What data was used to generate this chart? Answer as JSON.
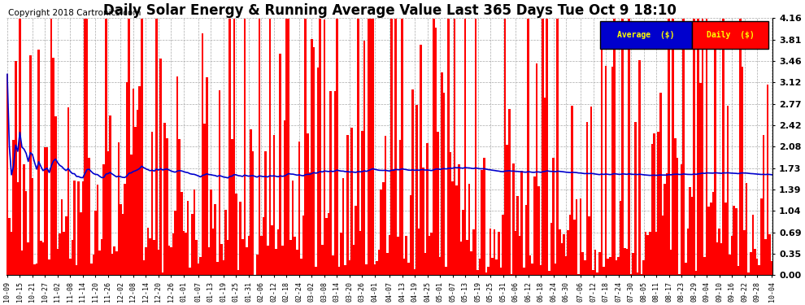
{
  "title": "Daily Solar Energy & Running Average Value Last 365 Days Tue Oct 9 18:10",
  "copyright": "Copyright 2018 Cartronics.com",
  "y_max": 4.16,
  "y_min": 0.0,
  "y_ticks": [
    0.0,
    0.35,
    0.69,
    1.04,
    1.39,
    1.73,
    2.08,
    2.42,
    2.77,
    3.12,
    3.46,
    3.81,
    4.16
  ],
  "bar_color": "#FF0000",
  "avg_color": "#0000CD",
  "legend_avg_bg": "#0000CD",
  "legend_daily_bg": "#FF0000",
  "legend_text_color": "#FFFF00",
  "background_color": "#FFFFFF",
  "grid_color": "#AAAAAA",
  "title_fontsize": 12,
  "copyright_fontsize": 7.5,
  "x_tick_fontsize": 6,
  "y_tick_fontsize": 8,
  "n_days": 365,
  "target_avg": 1.82,
  "x_tick_labels": [
    "10-09",
    "10-15",
    "10-21",
    "10-27",
    "11-02",
    "11-08",
    "11-14",
    "11-20",
    "11-26",
    "12-02",
    "12-08",
    "12-14",
    "12-20",
    "12-26",
    "01-01",
    "01-07",
    "01-13",
    "01-19",
    "01-25",
    "01-31",
    "02-06",
    "02-12",
    "02-18",
    "02-24",
    "03-02",
    "03-08",
    "03-14",
    "03-20",
    "03-26",
    "04-01",
    "04-07",
    "04-13",
    "04-19",
    "04-25",
    "05-01",
    "05-07",
    "05-13",
    "05-19",
    "05-25",
    "05-31",
    "06-06",
    "06-12",
    "06-18",
    "06-24",
    "06-30",
    "07-06",
    "07-12",
    "07-18",
    "07-24",
    "07-30",
    "08-05",
    "08-11",
    "08-17",
    "08-23",
    "08-29",
    "09-04",
    "09-10",
    "09-16",
    "09-22",
    "09-28",
    "10-04"
  ]
}
